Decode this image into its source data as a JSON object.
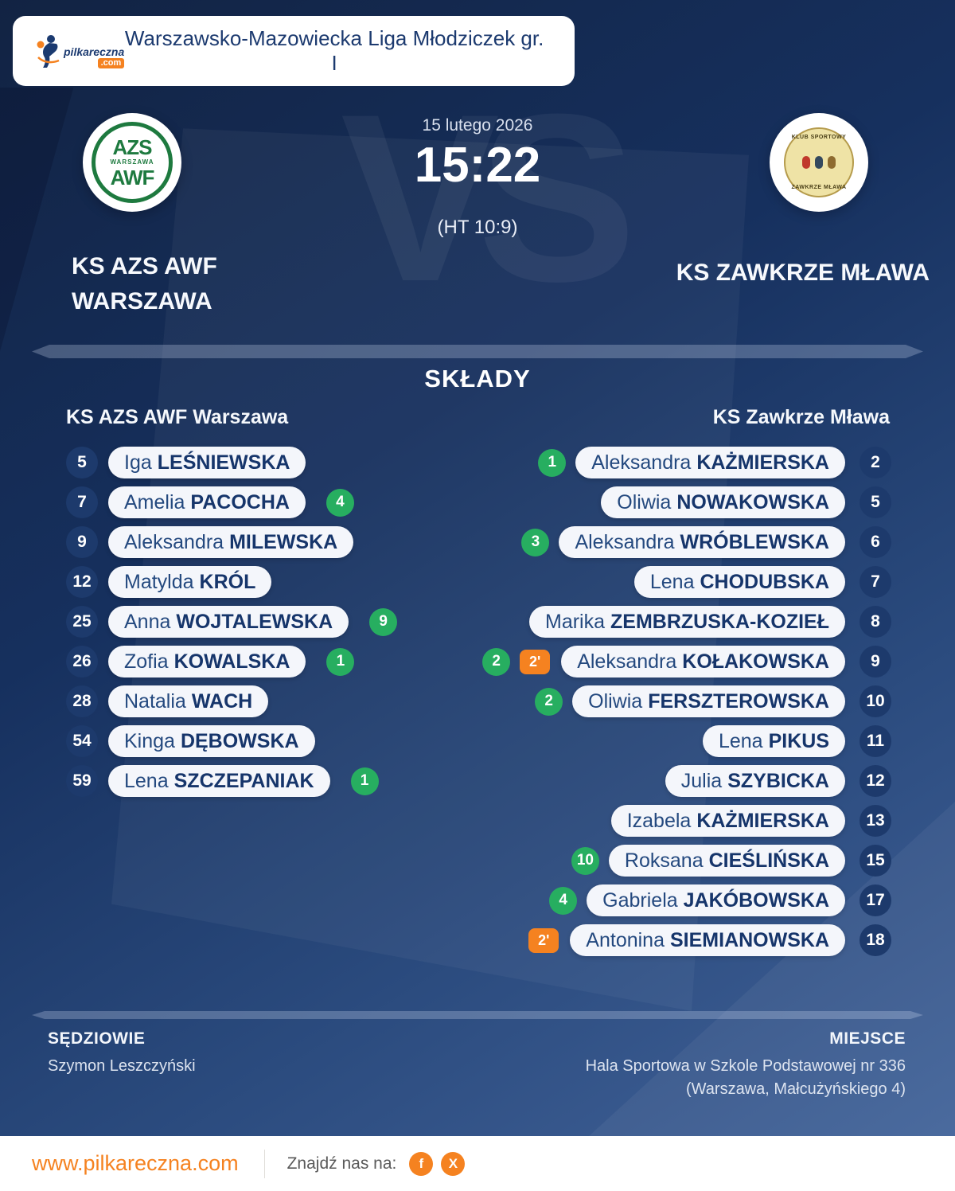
{
  "header": {
    "league": "Warszawsko-Mazowiecka Liga Młodziczek gr. I",
    "brand_name": "pilkareczna",
    "brand_tld": ".com"
  },
  "match": {
    "date": "15 lutego 2026",
    "score": "15:22",
    "halftime": "(HT 10:9)",
    "vs_watermark": "VS",
    "home_name": "KS AZS AWF WARSZAWA",
    "away_name": "KS ZAWKRZE MŁAWA",
    "home_logo": {
      "top": "AZS",
      "mid": "WARSZAWA",
      "bottom": "AWF"
    },
    "away_logo": {
      "top": "KLUB SPORTOWY",
      "bottom": "ZAWKRZE MŁAWA"
    }
  },
  "lineups": {
    "title": "SKŁADY",
    "home_team": "KS AZS AWF Warszawa",
    "away_team": "KS Zawkrze Mława",
    "home_players": [
      {
        "number": "5",
        "first": "Iga",
        "last": "LEŚNIEWSKA"
      },
      {
        "number": "7",
        "first": "Amelia",
        "last": "PACOCHA",
        "goals": "4"
      },
      {
        "number": "9",
        "first": "Aleksandra",
        "last": "MILEWSKA"
      },
      {
        "number": "12",
        "first": "Matylda",
        "last": "KRÓL"
      },
      {
        "number": "25",
        "first": "Anna",
        "last": "WOJTALEWSKA",
        "goals": "9"
      },
      {
        "number": "26",
        "first": "Zofia",
        "last": "KOWALSKA",
        "goals": "1"
      },
      {
        "number": "28",
        "first": "Natalia",
        "last": "WACH"
      },
      {
        "number": "54",
        "first": "Kinga",
        "last": "DĘBOWSKA"
      },
      {
        "number": "59",
        "first": "Lena",
        "last": "SZCZEPANIAK",
        "goals": "1"
      }
    ],
    "away_players": [
      {
        "number": "2",
        "first": "Aleksandra",
        "last": "KAŻMIERSKA",
        "goals": "1"
      },
      {
        "number": "5",
        "first": "Oliwia",
        "last": "NOWAKOWSKA"
      },
      {
        "number": "6",
        "first": "Aleksandra",
        "last": "WRÓBLEWSKA",
        "goals": "3"
      },
      {
        "number": "7",
        "first": "Lena",
        "last": "CHODUBSKA"
      },
      {
        "number": "8",
        "first": "Marika",
        "last": "ZEMBRZUSKA-KOZIEŁ"
      },
      {
        "number": "9",
        "first": "Aleksandra",
        "last": "KOŁAKOWSKA",
        "goals": "2",
        "susp": "2'"
      },
      {
        "number": "10",
        "first": "Oliwia",
        "last": "FERSZTEROWSKA",
        "goals": "2"
      },
      {
        "number": "11",
        "first": "Lena",
        "last": "PIKUS"
      },
      {
        "number": "12",
        "first": "Julia",
        "last": "SZYBICKA"
      },
      {
        "number": "13",
        "first": "Izabela",
        "last": "KAŻMIERSKA"
      },
      {
        "number": "15",
        "first": "Roksana",
        "last": "CIEŚLIŃSKA",
        "goals": "10"
      },
      {
        "number": "17",
        "first": "Gabriela",
        "last": "JAKÓBOWSKA",
        "goals": "4"
      },
      {
        "number": "18",
        "first": "Antonina",
        "last": "SIEMIANOWSKA",
        "susp": "2'"
      }
    ]
  },
  "info": {
    "referees_label": "SĘDZIOWIE",
    "referees": "Szymon Leszczyński",
    "venue_label": "MIEJSCE",
    "venue": "Hala Sportowa w Szkole Podstawowej nr 336 (Warszawa, Małcużyńskiego 4)"
  },
  "footer": {
    "website": "www.pilkareczna.com",
    "find_us": "Znajdź nas na:",
    "social": [
      {
        "icon": "facebook-icon",
        "glyph": "f"
      },
      {
        "icon": "x-icon",
        "glyph": "X"
      }
    ]
  },
  "colors": {
    "navy_bg": "#16305e",
    "navy_text": "#1b3a70",
    "pill_bg": "#f4f6fb",
    "goal_green": "#27ae60",
    "suspension_orange": "#f58220",
    "brand_orange": "#f58220"
  }
}
